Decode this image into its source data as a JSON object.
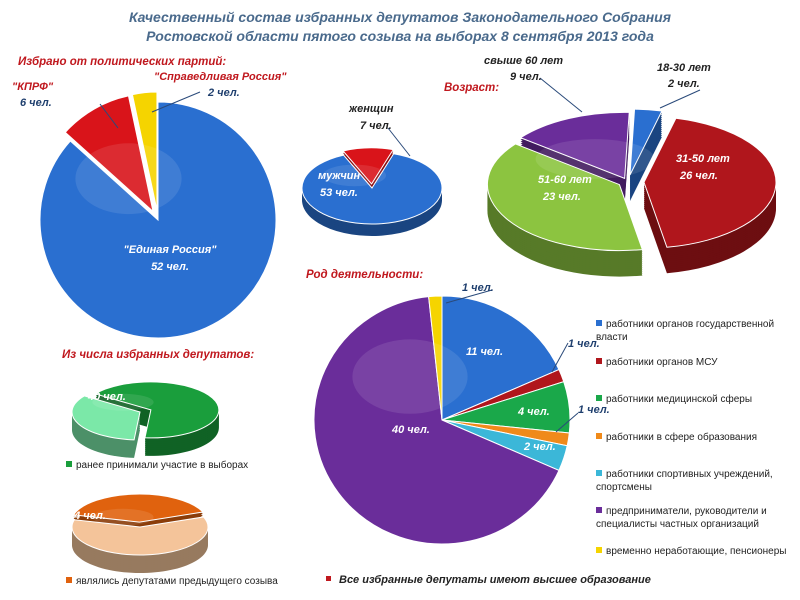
{
  "title": {
    "line1": "Качественный состав избранных депутатов Законодательного Собрания",
    "line2": "Ростовской области пятого созыва на выборах 8 сентября 2013 года"
  },
  "colors": {
    "blue": "#2a6fd0",
    "red": "#d9141a",
    "yellow": "#f5d400",
    "green": "#8cc440",
    "darkred": "#b0161c",
    "purple": "#6a2d9a",
    "teal": "#3bb7d8",
    "orange": "#f08a1a",
    "lightgreen": "#7be8a8",
    "darkgreen": "#1a9e3c",
    "peach": "#f4c49a",
    "darkorange": "#e0620e",
    "section_title": "#c0181e",
    "title": "#4a6a8c"
  },
  "sections": {
    "parties": "Избрано от политических партий:",
    "age": "Возраст:",
    "occupation": "Род деятельности:",
    "among": "Из числа избранных депутатов:"
  },
  "labels": {
    "parties": {
      "er_name": "\"Единая Россия\"",
      "er_value": "52 чел.",
      "kprf_name": "\"КПРФ\"",
      "kprf_value": "6 чел.",
      "sr_name": "\"Справедливая Россия\"",
      "sr_value": "2 чел."
    },
    "gender": {
      "women_name": "женщин",
      "women_value": "7 чел.",
      "men_name": "мужчин",
      "men_value": "53 чел."
    },
    "age": {
      "over60_name": "свыше 60 лет",
      "over60_value": "9 чел.",
      "a18_30_name": "18-30 лет",
      "a18_30_value": "2 чел.",
      "a31_50_name": "31-50 лет",
      "a31_50_value": "26 чел.",
      "a51_60_name": "51-60 лет",
      "a51_60_value": "23 чел."
    },
    "occupation": {
      "gov": "11 чел.",
      "msu": "1 чел.",
      "med": "4 чел.",
      "edu": "1 чел.",
      "sport": "2 чел.",
      "business": "40 чел.",
      "retired": "1 чел."
    },
    "prev_elections": "40 чел.",
    "prev_deputies": "24 чел."
  },
  "legend": {
    "occupation": [
      {
        "text": "работники органов государственной власти",
        "color": "#2a6fd0"
      },
      {
        "text": "работники органов МСУ",
        "color": "#b0161c"
      },
      {
        "text": "работники медицинской сферы",
        "color": "#1aa84a"
      },
      {
        "text": "работники в сфере образования",
        "color": "#f08a1a"
      },
      {
        "text": "работники спортивных учреждений, спортсмены",
        "color": "#3bb7d8"
      },
      {
        "text": "предприниматели, руководители и специалисты частных организаций",
        "color": "#6a2d9a"
      },
      {
        "text": "временно неработающие, пенсионеры",
        "color": "#f5d400"
      }
    ],
    "prev_elections": {
      "text": "ранее принимали участие в выборах",
      "color": "#1a9e3c"
    },
    "prev_deputies": {
      "text": "являлись депутатами предыдущего созыва",
      "color": "#e0620e"
    }
  },
  "note": "Все избранные депутаты имеют высшее образование",
  "note_color": "#c0181e",
  "chart_data": [
    {
      "type": "pie",
      "id": "parties",
      "title": "Избрано от политических партий:",
      "categories": [
        "\"Единая Россия\"",
        "\"КПРФ\"",
        "\"Справедливая Россия\""
      ],
      "values": [
        52,
        6,
        2
      ],
      "colors": [
        "#2a6fd0",
        "#d9141a",
        "#f5d400"
      ]
    },
    {
      "type": "pie",
      "id": "gender",
      "categories": [
        "мужчин",
        "женщин"
      ],
      "values": [
        53,
        7
      ],
      "colors": [
        "#2a6fd0",
        "#d9141a"
      ]
    },
    {
      "type": "pie",
      "id": "age",
      "title": "Возраст:",
      "categories": [
        "18-30 лет",
        "31-50 лет",
        "51-60 лет",
        "свыше 60 лет"
      ],
      "values": [
        2,
        26,
        23,
        9
      ],
      "colors": [
        "#2a6fd0",
        "#b0161c",
        "#8cc440",
        "#6a2d9a"
      ]
    },
    {
      "type": "pie",
      "id": "occupation",
      "title": "Род деятельности:",
      "categories": [
        "работники органов государственной власти",
        "работники органов МСУ",
        "работники медицинской сферы",
        "работники в сфере образования",
        "работники спортивных учреждений, спортсмены",
        "предприниматели, руководители и специалисты частных организаций",
        "временно неработающие, пенсионеры"
      ],
      "values": [
        11,
        1,
        4,
        1,
        2,
        40,
        1
      ],
      "colors": [
        "#2a6fd0",
        "#b0161c",
        "#1aa84a",
        "#f08a1a",
        "#3bb7d8",
        "#6a2d9a",
        "#f5d400"
      ]
    },
    {
      "type": "pie",
      "id": "prev_elections",
      "title": "Из числа избранных депутатов:",
      "categories": [
        "ранее принимали участие в выборах",
        ""
      ],
      "values": [
        40,
        20
      ],
      "colors": [
        "#1a9e3c",
        "#7be8a8"
      ]
    },
    {
      "type": "pie",
      "id": "prev_deputies",
      "categories": [
        "являлись депутатами предыдущего созыва",
        ""
      ],
      "values": [
        24,
        36
      ],
      "colors": [
        "#e0620e",
        "#f4c49a"
      ]
    }
  ]
}
